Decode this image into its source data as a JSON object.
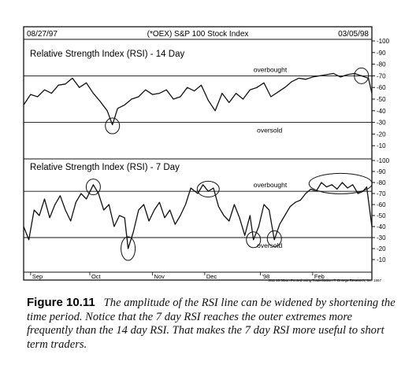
{
  "header": {
    "start_date": "08/27/97",
    "title": "(*OEX) S&P 100 Stock Index",
    "end_date": "03/05/98"
  },
  "chart_data": [
    {
      "type": "line",
      "title": "Relative Strength Index (RSI) - 14 Day",
      "ylim": [
        0,
        100
      ],
      "yticks": [
        10,
        20,
        30,
        40,
        50,
        60,
        70,
        80,
        90,
        100
      ],
      "thresholds": {
        "overbought": 70,
        "oversold": 30
      },
      "annotations": [
        "overbought",
        "oversold"
      ],
      "circled_points": [
        {
          "x": 0.255,
          "y": 27
        },
        {
          "x": 0.97,
          "y": 70
        }
      ],
      "series": [
        {
          "x": [
            0,
            0.02,
            0.04,
            0.06,
            0.08,
            0.1,
            0.12,
            0.14,
            0.16,
            0.18,
            0.2,
            0.22,
            0.24,
            0.255,
            0.27,
            0.29,
            0.31,
            0.33,
            0.35,
            0.37,
            0.39,
            0.41,
            0.43,
            0.45,
            0.47,
            0.49,
            0.51,
            0.53,
            0.55,
            0.57,
            0.59,
            0.61,
            0.63,
            0.65,
            0.67,
            0.69,
            0.71,
            0.73,
            0.75,
            0.77,
            0.79,
            0.81,
            0.83,
            0.85,
            0.87,
            0.89,
            0.91,
            0.93,
            0.95,
            0.97,
            0.99,
            1.0
          ],
          "y": [
            45,
            54,
            52,
            58,
            55,
            62,
            63,
            68,
            60,
            64,
            55,
            48,
            40,
            28,
            42,
            45,
            50,
            52,
            58,
            54,
            55,
            58,
            50,
            52,
            60,
            57,
            62,
            49,
            40,
            55,
            47,
            55,
            50,
            58,
            60,
            64,
            52,
            56,
            60,
            65,
            68,
            67,
            69,
            70,
            71,
            72,
            69,
            71,
            72,
            70,
            68,
            55
          ]
        }
      ]
    },
    {
      "type": "line",
      "title": "Relative Strength Index (RSI) - 7 Day",
      "ylim": [
        0,
        100
      ],
      "yticks": [
        10,
        20,
        30,
        40,
        50,
        60,
        70,
        80,
        90,
        100
      ],
      "thresholds": {
        "overbought": 72,
        "oversold": 30
      },
      "x_tick_labels": [
        "Sep",
        "Oct",
        "Nov",
        "Dec",
        "'98",
        "Feb"
      ],
      "annotations": [
        "overbought",
        "oversold"
      ],
      "circled_points": [
        {
          "x": 0.2,
          "y": 76
        },
        {
          "x": 0.3,
          "y": 20
        },
        {
          "x": 0.53,
          "y": 74
        },
        {
          "x": 0.66,
          "y": 28
        },
        {
          "x": 0.72,
          "y": 29
        },
        {
          "x": 0.91,
          "y": 79
        }
      ],
      "series": [
        {
          "x": [
            0,
            0.015,
            0.03,
            0.045,
            0.06,
            0.075,
            0.09,
            0.105,
            0.12,
            0.135,
            0.15,
            0.165,
            0.18,
            0.2,
            0.215,
            0.23,
            0.245,
            0.26,
            0.275,
            0.29,
            0.3,
            0.315,
            0.33,
            0.345,
            0.36,
            0.375,
            0.39,
            0.405,
            0.42,
            0.435,
            0.45,
            0.465,
            0.48,
            0.5,
            0.515,
            0.53,
            0.545,
            0.56,
            0.575,
            0.59,
            0.605,
            0.62,
            0.635,
            0.65,
            0.66,
            0.675,
            0.69,
            0.705,
            0.72,
            0.735,
            0.75,
            0.765,
            0.78,
            0.795,
            0.81,
            0.825,
            0.84,
            0.855,
            0.87,
            0.885,
            0.9,
            0.915,
            0.93,
            0.945,
            0.96,
            0.975,
            0.985,
            1.0
          ],
          "y": [
            40,
            28,
            55,
            50,
            65,
            48,
            60,
            68,
            55,
            45,
            62,
            70,
            65,
            78,
            70,
            55,
            60,
            40,
            50,
            48,
            20,
            35,
            55,
            60,
            45,
            55,
            62,
            48,
            55,
            42,
            50,
            60,
            75,
            70,
            78,
            72,
            75,
            58,
            50,
            45,
            60,
            48,
            32,
            50,
            28,
            40,
            60,
            55,
            28,
            42,
            50,
            58,
            62,
            64,
            70,
            74,
            72,
            80,
            76,
            78,
            74,
            80,
            75,
            78,
            70,
            72,
            76,
            40
          ]
        }
      ]
    }
  ],
  "footnote": "3/11 10:50am Printed using TradeStation ® Omega Research, Inc. 1997",
  "caption": {
    "label": "Figure 10.11",
    "text": "The amplitude of the RSI line can be widened by shortening the time period. Notice that the 7 day RSI reaches the outer extremes more frequently than the 14 day RSI. That makes the 7 day RSI more useful to short term traders."
  }
}
